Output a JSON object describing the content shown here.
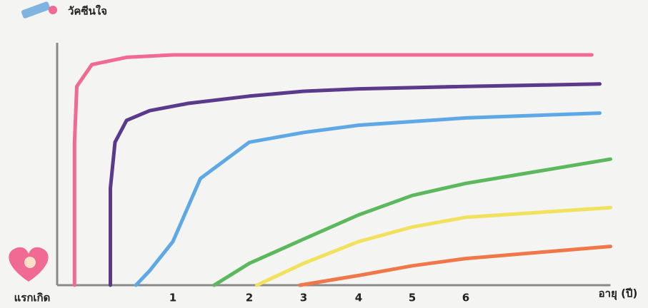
{
  "chart_data": {
    "type": "line",
    "ylabel": "วัคซีนใจ",
    "xlabel": "อายุ (ปี)",
    "xticks": [
      {
        "value": 0,
        "label": "แรกเกิด"
      },
      1,
      2,
      3,
      4,
      5,
      6
    ],
    "xlim": [
      0,
      8.7
    ],
    "ylim": [
      0,
      100
    ],
    "grid": false,
    "series": [
      {
        "color": "#f06a93",
        "x": [
          0.15,
          0.15,
          0.17,
          0.3,
          0.6,
          1,
          3,
          6,
          8.35
        ],
        "values": [
          0,
          59,
          82,
          91,
          94,
          95,
          95,
          95,
          95
        ]
      },
      {
        "color": "#5b3a8c",
        "x": [
          0.46,
          0.46,
          0.5,
          0.6,
          0.8,
          1.2,
          2,
          3,
          4,
          6,
          8.5
        ],
        "values": [
          0,
          40,
          59,
          68,
          72,
          75,
          78,
          80,
          81,
          82,
          83
        ]
      },
      {
        "color": "#5fa8e6",
        "x": [
          0.68,
          0.8,
          1,
          1.36,
          2,
          3,
          4,
          6,
          8.5
        ],
        "values": [
          0,
          6,
          18,
          44,
          59,
          63,
          66,
          69,
          71
        ]
      },
      {
        "color": "#5cb85c",
        "x": [
          1.54,
          2,
          3,
          4,
          5,
          6,
          8.7
        ],
        "values": [
          0,
          9,
          19,
          29,
          37,
          42,
          52
        ]
      },
      {
        "color": "#f2e15c",
        "x": [
          2.14,
          3,
          4,
          5,
          6,
          8.7
        ],
        "values": [
          0,
          9,
          18,
          24,
          28,
          32
        ]
      },
      {
        "color": "#f07848",
        "x": [
          2.93,
          4,
          5,
          6,
          8.7
        ],
        "values": [
          0,
          4,
          8,
          11,
          16
        ]
      }
    ]
  }
}
